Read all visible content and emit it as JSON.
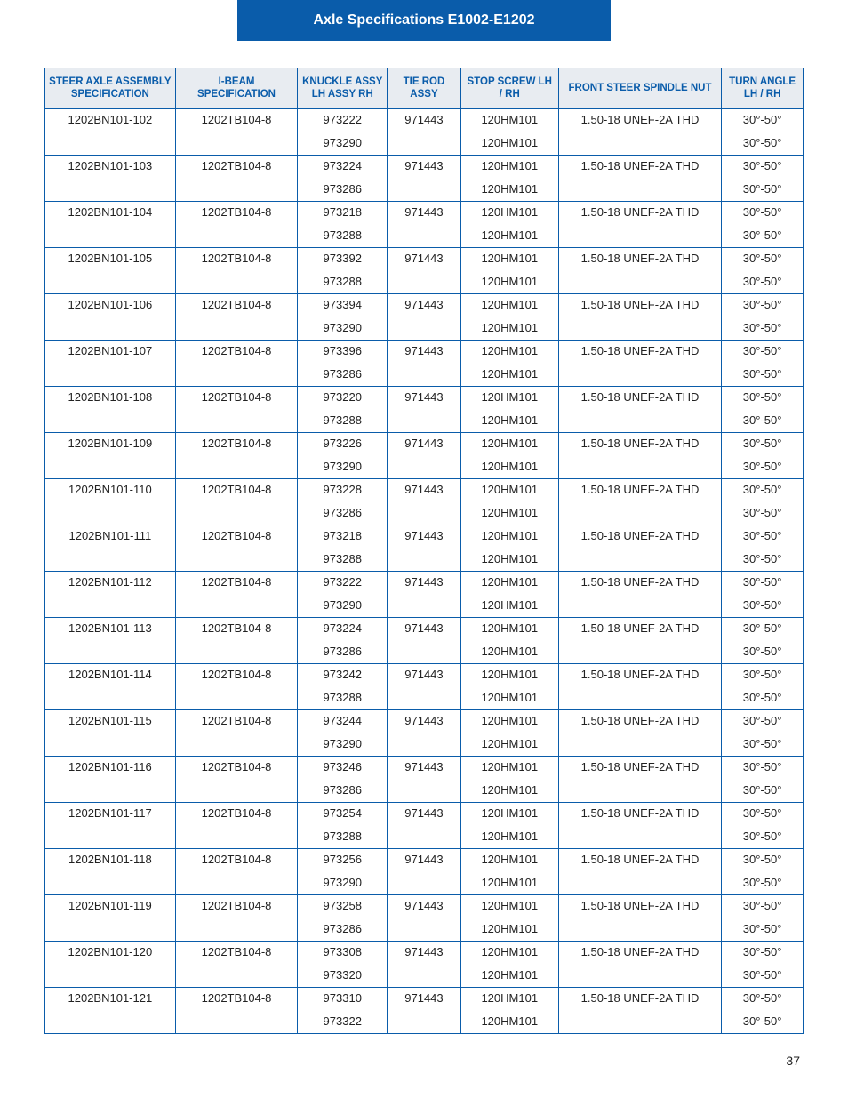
{
  "title": "Axle Specifications E1002-E1202",
  "pageNumber": "37",
  "colors": {
    "brand": "#0a5caa",
    "headerBg": "#e8ecf1",
    "text": "#222222",
    "pageBg": "#ffffff"
  },
  "columns": [
    "STEER AXLE ASSEMBLY SPECIFICATION",
    "I-BEAM SPECIFICATION",
    "KNUCKLE ASSY LH ASSY RH",
    "TIE ROD ASSY",
    "STOP SCREW LH / RH",
    "FRONT STEER SPINDLE NUT",
    "TURN ANGLE LH / RH"
  ],
  "groups": [
    {
      "assy": "1202BN101-102",
      "ibeam": "1202TB104-8",
      "klh": "973222",
      "krh": "973290",
      "tierod": "971443",
      "stop": "120HM101",
      "nut": "1.50-18 UNEF-2A THD",
      "angle": "30°-50°"
    },
    {
      "assy": "1202BN101-103",
      "ibeam": "1202TB104-8",
      "klh": "973224",
      "krh": "973286",
      "tierod": "971443",
      "stop": "120HM101",
      "nut": "1.50-18 UNEF-2A THD",
      "angle": "30°-50°"
    },
    {
      "assy": "1202BN101-104",
      "ibeam": "1202TB104-8",
      "klh": "973218",
      "krh": "973288",
      "tierod": "971443",
      "stop": "120HM101",
      "nut": "1.50-18 UNEF-2A THD",
      "angle": "30°-50°"
    },
    {
      "assy": "1202BN101-105",
      "ibeam": "1202TB104-8",
      "klh": "973392",
      "krh": "973288",
      "tierod": "971443",
      "stop": "120HM101",
      "nut": "1.50-18 UNEF-2A THD",
      "angle": "30°-50°"
    },
    {
      "assy": "1202BN101-106",
      "ibeam": "1202TB104-8",
      "klh": "973394",
      "krh": "973290",
      "tierod": "971443",
      "stop": "120HM101",
      "nut": "1.50-18 UNEF-2A THD",
      "angle": "30°-50°"
    },
    {
      "assy": "1202BN101-107",
      "ibeam": "1202TB104-8",
      "klh": "973396",
      "krh": "973286",
      "tierod": "971443",
      "stop": "120HM101",
      "nut": "1.50-18 UNEF-2A THD",
      "angle": "30°-50°"
    },
    {
      "assy": "1202BN101-108",
      "ibeam": "1202TB104-8",
      "klh": "973220",
      "krh": "973288",
      "tierod": "971443",
      "stop": "120HM101",
      "nut": "1.50-18 UNEF-2A THD",
      "angle": "30°-50°"
    },
    {
      "assy": "1202BN101-109",
      "ibeam": "1202TB104-8",
      "klh": "973226",
      "krh": "973290",
      "tierod": "971443",
      "stop": "120HM101",
      "nut": "1.50-18 UNEF-2A THD",
      "angle": "30°-50°"
    },
    {
      "assy": "1202BN101-110",
      "ibeam": "1202TB104-8",
      "klh": "973228",
      "krh": "973286",
      "tierod": "971443",
      "stop": "120HM101",
      "nut": "1.50-18 UNEF-2A THD",
      "angle": "30°-50°"
    },
    {
      "assy": "1202BN101-111",
      "ibeam": "1202TB104-8",
      "klh": "973218",
      "krh": "973288",
      "tierod": "971443",
      "stop": "120HM101",
      "nut": "1.50-18 UNEF-2A THD",
      "angle": "30°-50°"
    },
    {
      "assy": "1202BN101-112",
      "ibeam": "1202TB104-8",
      "klh": "973222",
      "krh": "973290",
      "tierod": "971443",
      "stop": "120HM101",
      "nut": "1.50-18 UNEF-2A THD",
      "angle": "30°-50°"
    },
    {
      "assy": "1202BN101-113",
      "ibeam": "1202TB104-8",
      "klh": "973224",
      "krh": "973286",
      "tierod": "971443",
      "stop": "120HM101",
      "nut": "1.50-18 UNEF-2A THD",
      "angle": "30°-50°"
    },
    {
      "assy": "1202BN101-114",
      "ibeam": "1202TB104-8",
      "klh": "973242",
      "krh": "973288",
      "tierod": "971443",
      "stop": "120HM101",
      "nut": "1.50-18 UNEF-2A THD",
      "angle": "30°-50°"
    },
    {
      "assy": "1202BN101-115",
      "ibeam": "1202TB104-8",
      "klh": "973244",
      "krh": "973290",
      "tierod": "971443",
      "stop": "120HM101",
      "nut": "1.50-18 UNEF-2A THD",
      "angle": "30°-50°"
    },
    {
      "assy": "1202BN101-116",
      "ibeam": "1202TB104-8",
      "klh": "973246",
      "krh": "973286",
      "tierod": "971443",
      "stop": "120HM101",
      "nut": "1.50-18 UNEF-2A THD",
      "angle": "30°-50°"
    },
    {
      "assy": "1202BN101-117",
      "ibeam": "1202TB104-8",
      "klh": "973254",
      "krh": "973288",
      "tierod": "971443",
      "stop": "120HM101",
      "nut": "1.50-18 UNEF-2A THD",
      "angle": "30°-50°"
    },
    {
      "assy": "1202BN101-118",
      "ibeam": "1202TB104-8",
      "klh": "973256",
      "krh": "973290",
      "tierod": "971443",
      "stop": "120HM101",
      "nut": "1.50-18 UNEF-2A THD",
      "angle": "30°-50°"
    },
    {
      "assy": "1202BN101-119",
      "ibeam": "1202TB104-8",
      "klh": "973258",
      "krh": "973286",
      "tierod": "971443",
      "stop": "120HM101",
      "nut": "1.50-18 UNEF-2A THD",
      "angle": "30°-50°"
    },
    {
      "assy": "1202BN101-120",
      "ibeam": "1202TB104-8",
      "klh": "973308",
      "krh": "973320",
      "tierod": "971443",
      "stop": "120HM101",
      "nut": "1.50-18 UNEF-2A THD",
      "angle": "30°-50°"
    },
    {
      "assy": "1202BN101-121",
      "ibeam": "1202TB104-8",
      "klh": "973310",
      "krh": "973322",
      "tierod": "971443",
      "stop": "120HM101",
      "nut": "1.50-18 UNEF-2A THD",
      "angle": "30°-50°"
    }
  ]
}
